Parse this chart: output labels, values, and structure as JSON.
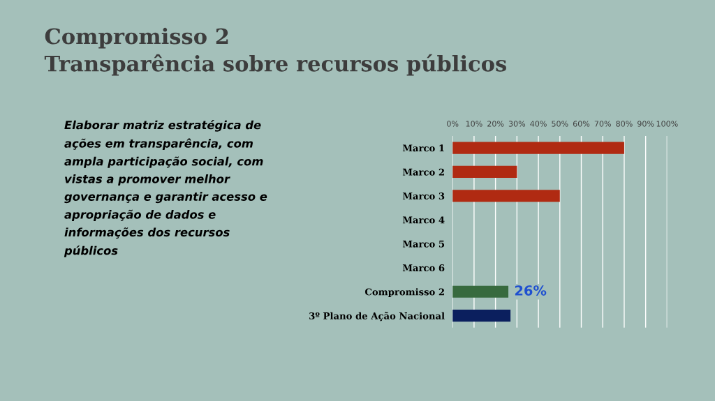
{
  "chart_data": {
    "type": "bar",
    "orientation": "horizontal",
    "title": "Compromisso 2",
    "subtitle": "Transparência sobre recursos públicos",
    "annotations": [
      "Elaborar matriz estratégica de ações em transparência, com ampla participação social, com vistas a promover melhor governança e garantir acesso e apropriação de dados e informações dos recursos públicos"
    ],
    "categories": [
      "Marco 1",
      "Marco 2",
      "Marco 3",
      "Marco 4",
      "Marco 5",
      "Marco 6",
      "Compromisso 2",
      "3º Plano de Ação Nacional"
    ],
    "values": [
      80,
      30,
      50,
      0,
      0,
      0,
      26,
      27
    ],
    "colors": [
      "#b02a12",
      "#b02a12",
      "#b02a12",
      "#b02a12",
      "#b02a12",
      "#b02a12",
      "#376a3e",
      "#0b1f5e"
    ],
    "value_labels": [
      null,
      null,
      null,
      null,
      null,
      null,
      "26%",
      null
    ],
    "xlim": [
      0,
      100
    ],
    "xticks": [
      {
        "value": 0,
        "label": "0%"
      },
      {
        "value": 10,
        "label": "10%"
      },
      {
        "value": 20,
        "label": "20%"
      },
      {
        "value": 30,
        "label": "30%"
      },
      {
        "value": 40,
        "label": "40%"
      },
      {
        "value": 50,
        "label": "50%"
      },
      {
        "value": 60,
        "label": "60%"
      },
      {
        "value": 70,
        "label": "70%"
      },
      {
        "value": 80,
        "label": "80%"
      },
      {
        "value": 90,
        "label": "90%"
      },
      {
        "value": 100,
        "label": "100%"
      }
    ],
    "grid": "x",
    "legend": false
  }
}
